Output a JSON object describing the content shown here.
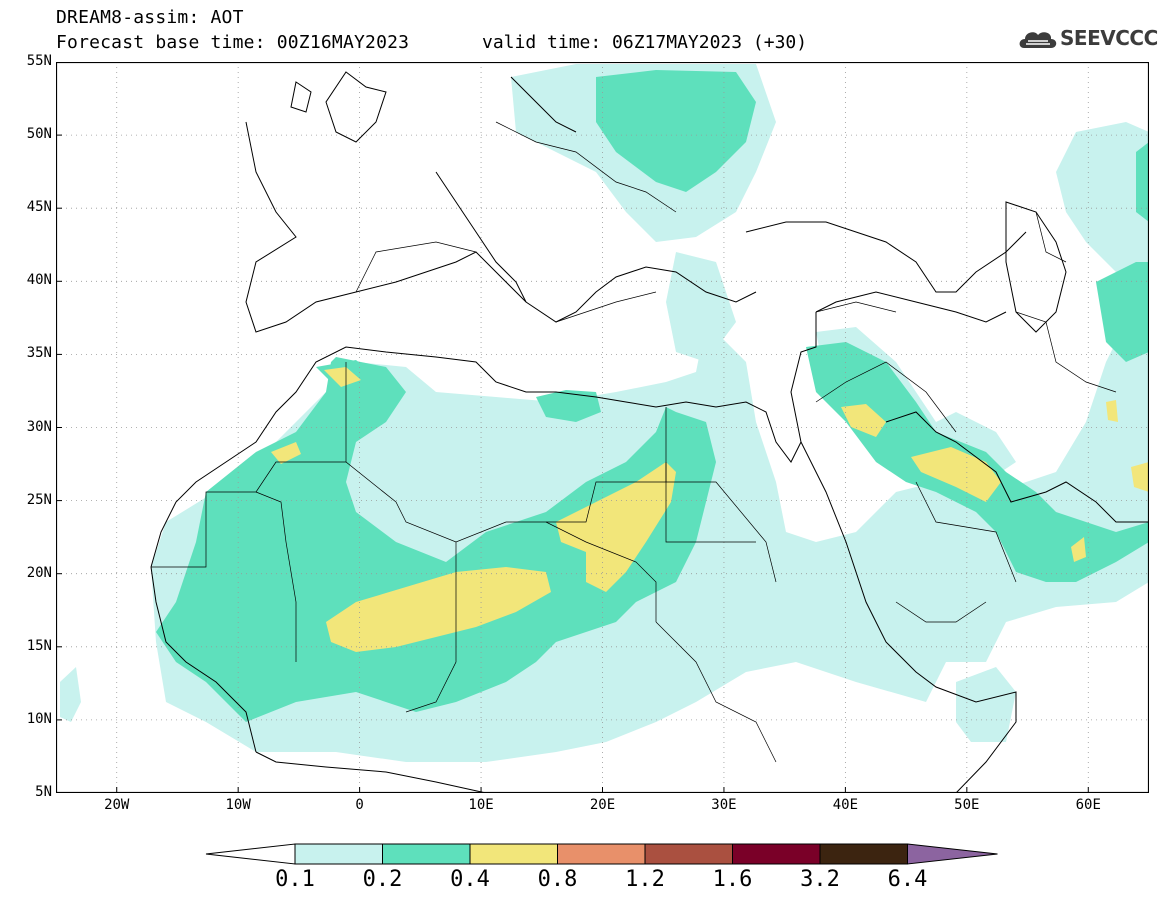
{
  "header": {
    "title_line1": "DREAM8-assim: AOT",
    "title_line2": "Forecast base time: 00Z16MAY2023",
    "valid_time": "valid time: 06Z17MAY2023 (+30)",
    "logo_text": "SEEVCCC",
    "logo_icon": "cloud-icon"
  },
  "map": {
    "extent": {
      "lon_min": -25,
      "lon_max": 65,
      "lat_min": 5,
      "lat_max": 55
    },
    "lat_labels": [
      "55N",
      "50N",
      "45N",
      "40N",
      "35N",
      "30N",
      "25N",
      "20N",
      "15N",
      "10N",
      "5N"
    ],
    "lon_labels": [
      "20W",
      "10W",
      "0",
      "10E",
      "20E",
      "30E",
      "40E",
      "50E",
      "60E"
    ],
    "grid": "dotted"
  },
  "colorbar": {
    "levels": [
      "0.1",
      "0.2",
      "0.4",
      "0.8",
      "1.2",
      "1.6",
      "3.2",
      "6.4"
    ],
    "colors": [
      "#c8f2ee",
      "#5ee0bc",
      "#f2e67a",
      "#e8906a",
      "#aa5040",
      "#7a0028",
      "#3c2410",
      "#8c64a0"
    ],
    "under_color": "#ffffff"
  }
}
